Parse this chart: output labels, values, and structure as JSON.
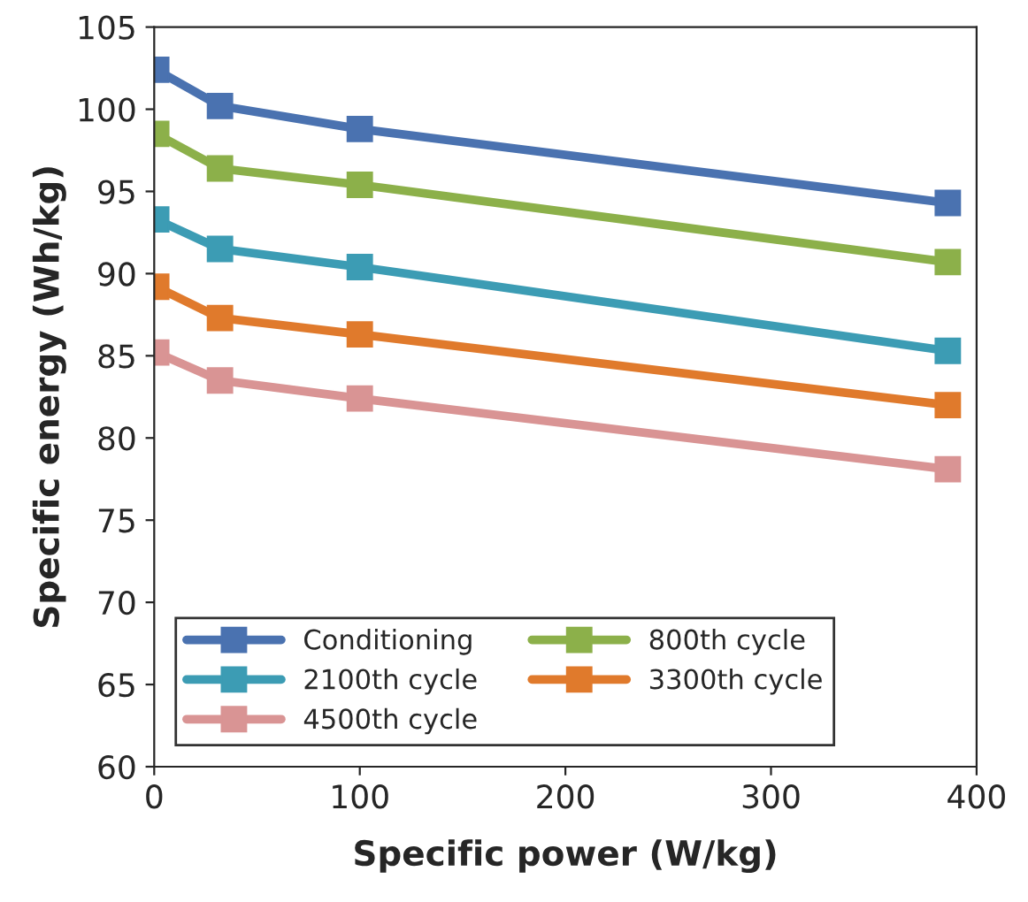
{
  "chart_data": {
    "type": "line",
    "xlabel": "Specific power (W/kg)",
    "ylabel": "Specific energy (Wh/kg)",
    "xlim": [
      0,
      400
    ],
    "xticks": [
      0,
      100,
      200,
      300,
      400
    ],
    "ylim": [
      60,
      105
    ],
    "yticks": [
      60,
      65,
      70,
      75,
      80,
      85,
      90,
      95,
      100,
      105
    ],
    "grid": false,
    "legend": "bottom left",
    "marker": "square",
    "line_style": "solid",
    "series": [
      {
        "name": "Conditioning",
        "color": "#4a72b0",
        "x": [
          1,
          32,
          100,
          386
        ],
        "values": [
          102.4,
          100.2,
          98.8,
          94.3
        ]
      },
      {
        "name": "800th cycle",
        "color": "#8cb04a",
        "x": [
          1,
          32,
          100,
          386
        ],
        "values": [
          98.5,
          96.4,
          95.4,
          90.7
        ]
      },
      {
        "name": "2100th cycle",
        "color": "#3c9cb4",
        "x": [
          1,
          32,
          100,
          386
        ],
        "values": [
          93.3,
          91.5,
          90.4,
          85.3
        ]
      },
      {
        "name": "3300th cycle",
        "color": "#e07a2c",
        "x": [
          1,
          32,
          100,
          386
        ],
        "values": [
          89.2,
          87.3,
          86.3,
          82.0
        ]
      },
      {
        "name": "4500th cycle",
        "color": "#d99494",
        "x": [
          1,
          32,
          100,
          386
        ],
        "values": [
          85.2,
          83.5,
          82.4,
          78.1
        ]
      }
    ]
  }
}
